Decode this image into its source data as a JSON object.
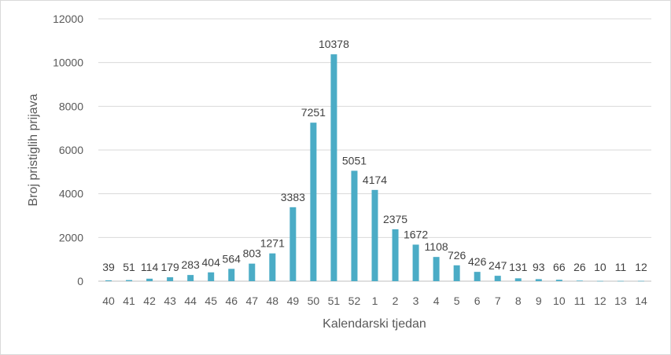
{
  "chart_data": {
    "type": "bar",
    "title": "",
    "xlabel": "Kalendarski tjedan",
    "ylabel": "Broj pristiglih prijava",
    "ylim": [
      0,
      12000
    ],
    "yticks": [
      0,
      2000,
      4000,
      6000,
      8000,
      10000,
      12000
    ],
    "grid": true,
    "legend": "none",
    "color": "#4BACC6",
    "categories": [
      "40",
      "41",
      "42",
      "43",
      "44",
      "45",
      "46",
      "47",
      "48",
      "49",
      "50",
      "51",
      "52",
      "1",
      "2",
      "3",
      "4",
      "5",
      "6",
      "7",
      "8",
      "9",
      "10",
      "11",
      "12",
      "13",
      "14"
    ],
    "values": [
      39,
      51,
      114,
      179,
      283,
      404,
      564,
      803,
      1271,
      3383,
      7251,
      10378,
      5051,
      4174,
      2375,
      1672,
      1108,
      726,
      426,
      247,
      131,
      93,
      66,
      26,
      10,
      11,
      12
    ]
  }
}
